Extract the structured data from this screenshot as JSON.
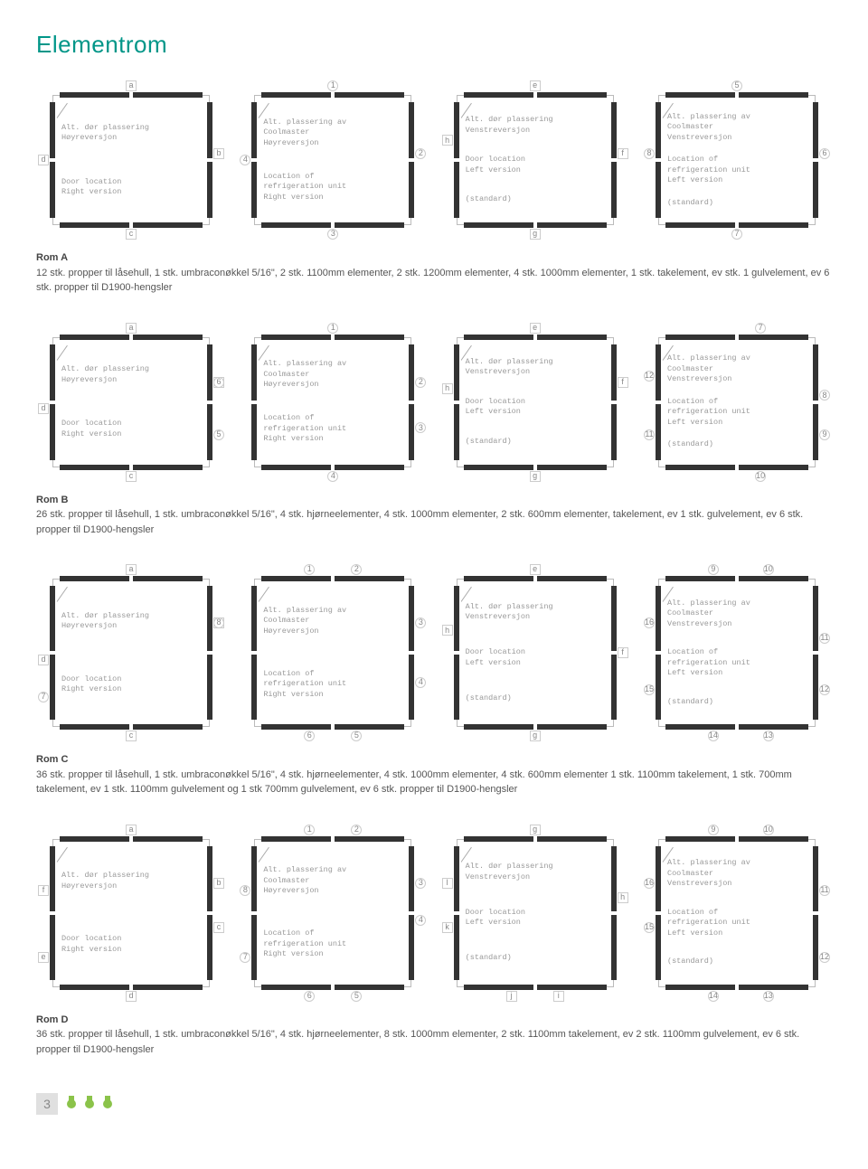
{
  "page_title": "Elementrom",
  "page_number": "3",
  "colors": {
    "title": "#009688",
    "line": "#bbbbbb",
    "seg": "#333333",
    "text": "#555555",
    "label": "#888888",
    "accent": "#8bc34a"
  },
  "panel_texts": {
    "door_right": {
      "line1": "Alt. dør plassering",
      "line2": "Høyreversjon",
      "line3": "Door location",
      "line4": "Right version"
    },
    "cool_right": {
      "line1": "Alt. plassering av",
      "line2": "Coolmaster",
      "line3": "Høyreversjon",
      "line4": "Location of",
      "line5": "refrigeration unit",
      "line6": "Right version"
    },
    "door_left": {
      "line1": "Alt. dør plassering",
      "line2": "Venstreversjon",
      "line3": "Door location",
      "line4": "Left version",
      "line5": "(standard)"
    },
    "cool_left": {
      "line1": "Alt. plassering av",
      "line2": "Coolmaster",
      "line3": "Venstreversjon",
      "line4": "Location of",
      "line5": "refrigeration unit",
      "line6": "Left version",
      "line7": "(standard)"
    }
  },
  "sections": [
    {
      "name": "Rom A",
      "caption": "12 stk. propper til låsehull, 1 stk. umbraconøkkel 5/16\", 2 stk. 1100mm elementer, 2 stk. 1200mm elementer, 4 stk. 1000mm elementer, 1 stk. takelement, ev stk. 1 gulvelement, ev 6 stk. propper til D1900-hengsler",
      "rows": [
        [
          {
            "type": "door_right",
            "markers": [
              [
                "a",
                "t",
                50
              ],
              [
                "b",
                "r",
                45
              ],
              [
                "c",
                "b",
                50
              ],
              [
                "d",
                "l",
                50
              ]
            ]
          },
          {
            "type": "cool_right",
            "markers": [
              [
                "1",
                "t",
                50
              ],
              [
                "2",
                "r",
                45
              ],
              [
                "3",
                "b",
                50
              ],
              [
                "4",
                "l",
                50
              ]
            ]
          },
          {
            "type": "door_left",
            "markers": [
              [
                "e",
                "t",
                50
              ],
              [
                "f",
                "r",
                45
              ],
              [
                "g",
                "b",
                50
              ],
              [
                "h",
                "l",
                35
              ]
            ]
          },
          {
            "type": "cool_left",
            "markers": [
              [
                "5",
                "t",
                50
              ],
              [
                "6",
                "r",
                45
              ],
              [
                "7",
                "b",
                50
              ],
              [
                "8",
                "l",
                45
              ]
            ]
          }
        ]
      ]
    },
    {
      "name": "Rom B",
      "caption": "26 stk. propper til låsehull, 1 stk. umbraconøkkel 5/16\", 4 stk. hjørneelementer, 4 stk. 1000mm elementer, 2 stk. 600mm elementer, takelement, ev 1 stk. gulvelement, ev 6 stk. propper til D1900-hengsler",
      "rows": [
        [
          {
            "type": "door_right",
            "markers": [
              [
                "a",
                "t",
                50
              ],
              [
                "b",
                "r",
                35
              ],
              [
                "c",
                "b",
                50
              ],
              [
                "d",
                "l",
                55
              ],
              [
                "5",
                "rb",
                75
              ],
              [
                "6",
                "rt",
                35
              ]
            ]
          },
          {
            "type": "cool_right",
            "markers": [
              [
                "1",
                "t",
                50
              ],
              [
                "2",
                "r",
                35
              ],
              [
                "3",
                "rb",
                70
              ],
              [
                "4",
                "b",
                50
              ]
            ]
          },
          {
            "type": "door_left",
            "markers": [
              [
                "e",
                "t",
                50
              ],
              [
                "f",
                "r",
                35
              ],
              [
                "g",
                "b",
                50
              ],
              [
                "h",
                "l",
                40
              ]
            ]
          },
          {
            "type": "cool_left",
            "markers": [
              [
                "7",
                "t",
                65
              ],
              [
                "8",
                "r",
                45
              ],
              [
                "9",
                "rb",
                75
              ],
              [
                "10",
                "b",
                65
              ],
              [
                "11",
                "lb",
                75
              ],
              [
                "12",
                "lt",
                30
              ]
            ]
          }
        ]
      ]
    },
    {
      "name": "Rom C",
      "caption": "36 stk. propper til låsehull, 1 stk. umbraconøkkel 5/16\", 4 stk. hjørneelementer, 4 stk. 1000mm elementer, 4 stk. 600mm elementer 1 stk. 1100mm takelement, 1 stk. 700mm takelement, ev 1 stk. 1100mm gulvelement og 1 stk 700mm gulvelement, ev 6 stk. propper til D1900-hengsler",
      "rows": [
        [
          {
            "type": "door_right",
            "tall": true,
            "markers": [
              [
                "a",
                "t",
                50
              ],
              [
                "b",
                "r",
                30
              ],
              [
                "c",
                "b",
                50
              ],
              [
                "d",
                "l",
                55
              ],
              [
                "7",
                "lb",
                80
              ],
              [
                "8",
                "rt",
                30
              ]
            ]
          },
          {
            "type": "cool_right",
            "tall": true,
            "markers": [
              [
                "1",
                "t",
                35
              ],
              [
                "2",
                "t",
                65
              ],
              [
                "3",
                "r",
                30
              ],
              [
                "4",
                "rb",
                70
              ],
              [
                "5",
                "b",
                65
              ],
              [
                "6",
                "b",
                35
              ]
            ]
          },
          {
            "type": "door_left",
            "tall": true,
            "markers": [
              [
                "e",
                "t",
                50
              ],
              [
                "f",
                "r",
                50
              ],
              [
                "g",
                "b",
                50
              ],
              [
                "h",
                "l",
                35
              ]
            ]
          },
          {
            "type": "cool_left",
            "tall": true,
            "markers": [
              [
                "9",
                "t",
                35
              ],
              [
                "10",
                "t",
                70
              ],
              [
                "11",
                "r",
                40
              ],
              [
                "12",
                "rb",
                75
              ],
              [
                "13",
                "b",
                70
              ],
              [
                "14",
                "b",
                35
              ],
              [
                "15",
                "lb",
                75
              ],
              [
                "16",
                "lt",
                30
              ]
            ]
          }
        ]
      ]
    },
    {
      "name": "Rom D",
      "caption": "36 stk. propper til låsehull, 1 stk. umbraconøkkel 5/16\", 4 stk. hjørneelementer, 8 stk. 1000mm elementer, 2 stk. 1100mm takelement,  ev 2 stk. 1100mm gulvelement, ev 6 stk. propper til D1900-hengsler",
      "rows": [
        [
          {
            "type": "door_right",
            "tall": true,
            "markers": [
              [
                "a",
                "t",
                50
              ],
              [
                "b",
                "r",
                30
              ],
              [
                "c",
                "r",
                60
              ],
              [
                "d",
                "b",
                50
              ],
              [
                "e",
                "lb",
                80
              ],
              [
                "f",
                "lt",
                35
              ]
            ]
          },
          {
            "type": "cool_right",
            "tall": true,
            "markers": [
              [
                "1",
                "t",
                35
              ],
              [
                "2",
                "t",
                65
              ],
              [
                "3",
                "r",
                30
              ],
              [
                "4",
                "r",
                55
              ],
              [
                "5",
                "b",
                65
              ],
              [
                "6",
                "b",
                35
              ],
              [
                "7",
                "lb",
                80
              ],
              [
                "8",
                "lt",
                35
              ]
            ]
          },
          {
            "type": "door_left",
            "tall": true,
            "markers": [
              [
                "g",
                "t",
                50
              ],
              [
                "h",
                "r",
                40
              ],
              [
                "i",
                "b",
                65
              ],
              [
                "j",
                "b",
                35
              ],
              [
                "k",
                "l",
                60
              ],
              [
                "l",
                "lt",
                30
              ]
            ]
          },
          {
            "type": "cool_left",
            "tall": true,
            "markers": [
              [
                "9",
                "t",
                35
              ],
              [
                "10",
                "t",
                70
              ],
              [
                "11",
                "r",
                35
              ],
              [
                "12",
                "rb",
                80
              ],
              [
                "13",
                "b",
                70
              ],
              [
                "14",
                "b",
                35
              ],
              [
                "15",
                "l",
                60
              ],
              [
                "16",
                "lt",
                30
              ]
            ]
          }
        ]
      ]
    }
  ]
}
